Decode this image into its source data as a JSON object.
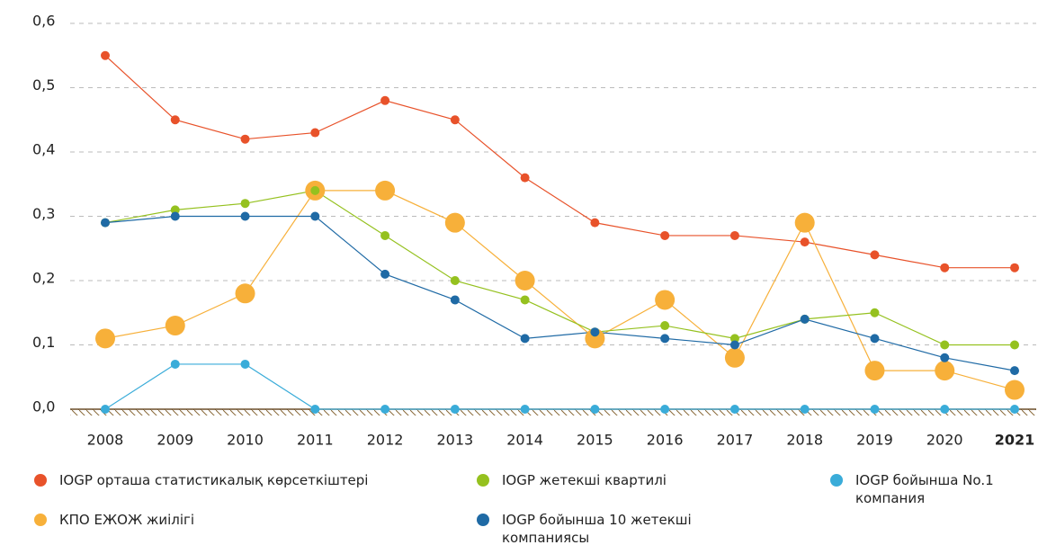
{
  "chart_data": {
    "type": "line",
    "categories": [
      "2008",
      "2009",
      "2010",
      "2011",
      "2012",
      "2013",
      "2014",
      "2015",
      "2016",
      "2017",
      "2018",
      "2019",
      "2020",
      "2021"
    ],
    "ylim": [
      0,
      0.6
    ],
    "yticks": [
      {
        "value": 0,
        "label": "0,0"
      },
      {
        "value": 0.1,
        "label": "0,1"
      },
      {
        "value": 0.2,
        "label": "0,2"
      },
      {
        "value": 0.3,
        "label": "0,3"
      },
      {
        "value": 0.4,
        "label": "0,4"
      },
      {
        "value": 0.5,
        "label": "0,5"
      },
      {
        "value": 0.6,
        "label": "0,6"
      }
    ],
    "grid": true,
    "series": [
      {
        "name": "IOGP орташа статистикалық көрсеткіштері",
        "color": "#e8522a",
        "values": [
          0.55,
          0.45,
          0.42,
          0.43,
          0.48,
          0.45,
          0.36,
          0.29,
          0.27,
          0.27,
          0.26,
          0.24,
          0.22,
          0.22
        ]
      },
      {
        "name": "КПО ЕЖОЖ жиілігі",
        "color": "#f7b03a",
        "marker_size": "large",
        "values": [
          0.11,
          0.13,
          0.18,
          0.34,
          0.34,
          0.29,
          0.2,
          0.11,
          0.17,
          0.08,
          0.29,
          0.06,
          0.06,
          0.03
        ]
      },
      {
        "name": "IOGP жетекші квартилі",
        "color": "#95c11f",
        "values": [
          0.29,
          0.31,
          0.32,
          0.34,
          0.27,
          0.2,
          0.17,
          0.12,
          0.13,
          0.11,
          0.14,
          0.15,
          0.1,
          0.1
        ]
      },
      {
        "name": "IOGP бойынша 10 жетекші компаниясы",
        "color": "#1f6aa5",
        "values": [
          0.29,
          0.3,
          0.3,
          0.3,
          0.21,
          0.17,
          0.11,
          0.12,
          0.11,
          0.1,
          0.14,
          0.11,
          0.08,
          0.06
        ]
      },
      {
        "name": "IOGP бойынша No.1 компания",
        "color": "#3aacd9",
        "values": [
          0,
          0.07,
          0.07,
          0,
          0,
          0,
          0,
          0,
          0,
          0,
          0,
          0,
          0,
          0
        ]
      }
    ]
  }
}
